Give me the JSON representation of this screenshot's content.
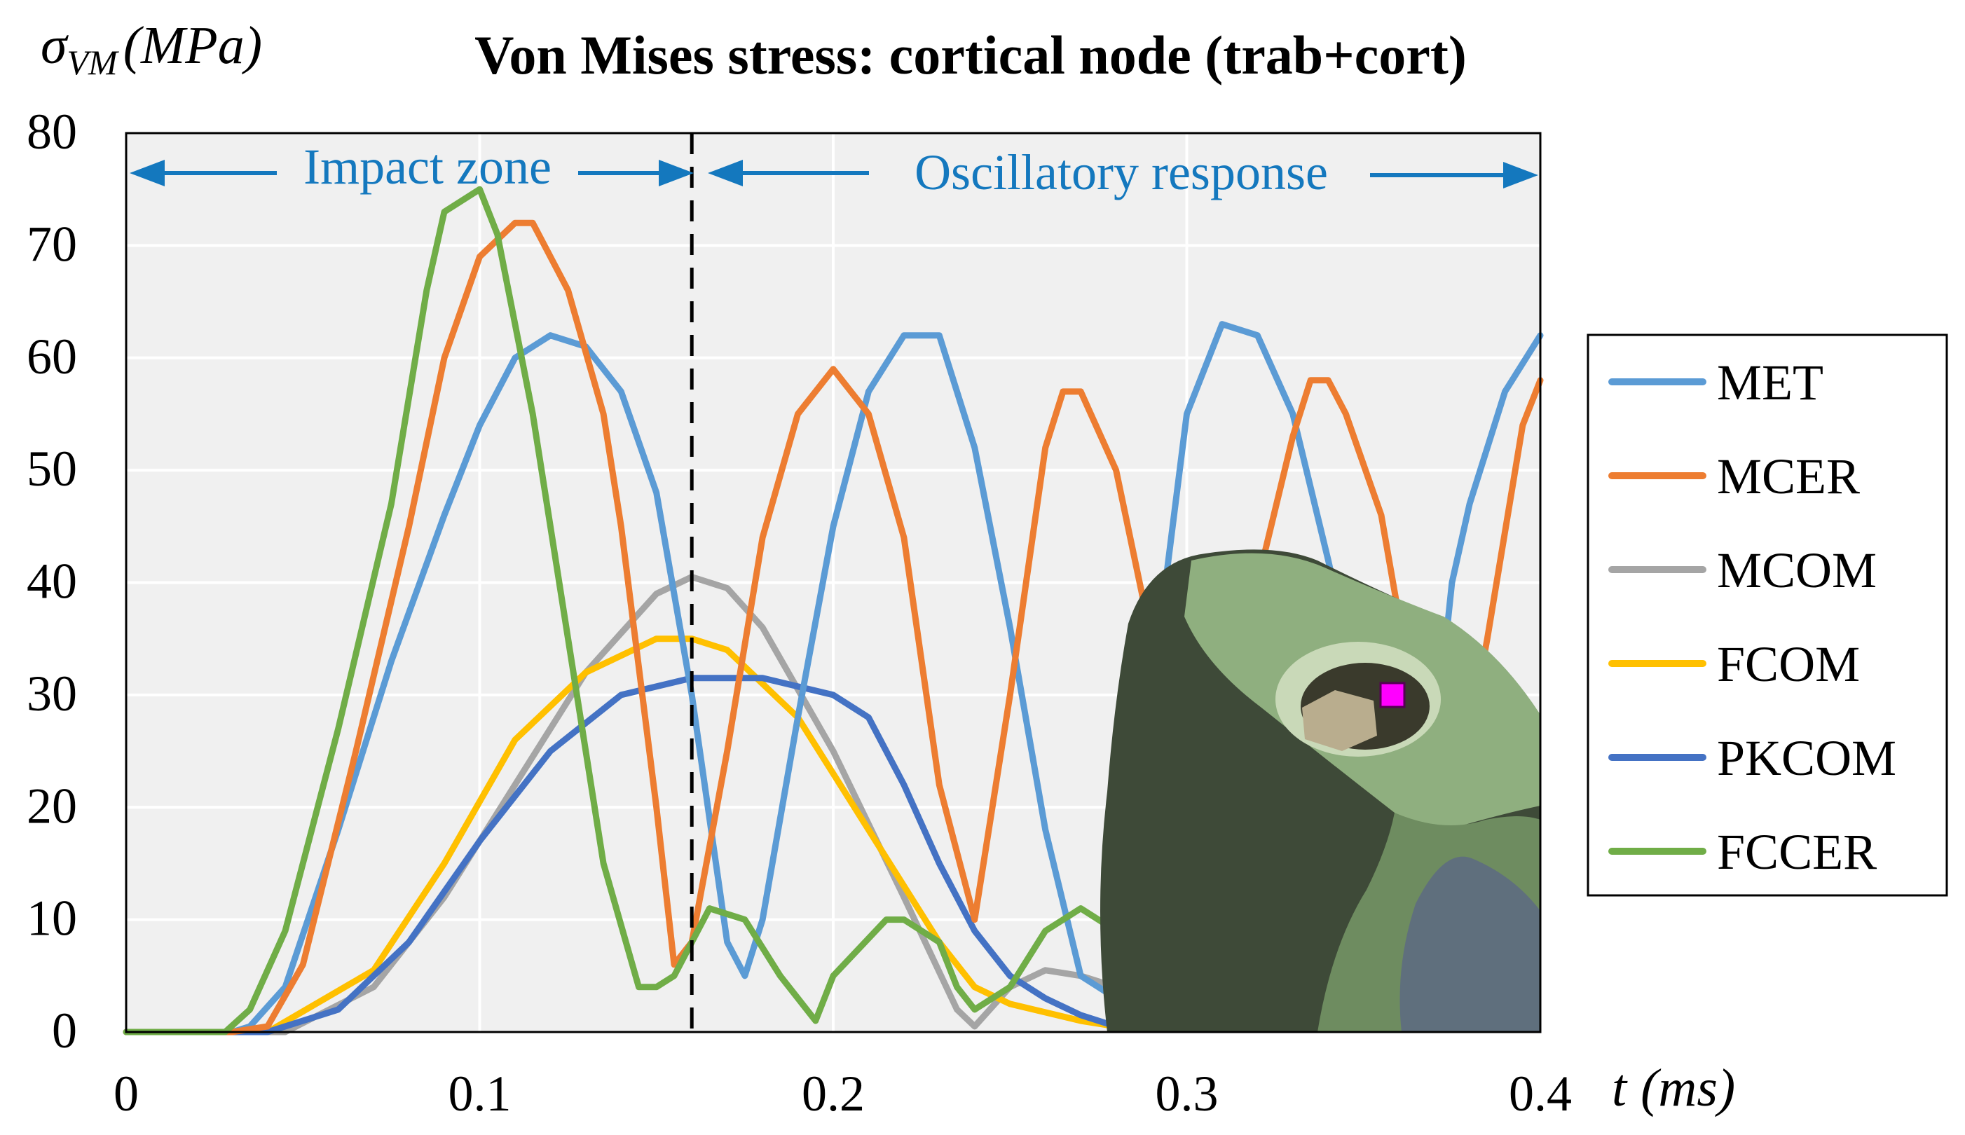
{
  "chart_data": {
    "type": "line",
    "title": "Von Mises stress: cortical node (trab+cort)",
    "ylabel": "σVM (MPa)",
    "ylabel_parts": {
      "symbol": "σ",
      "subscript": "VM",
      "unit": "(MPa)"
    },
    "xlabel": "t (ms)",
    "xlabel_parts": {
      "symbol": "t",
      "unit": "(ms)"
    },
    "xlim": [
      0,
      0.4
    ],
    "ylim": [
      0,
      80
    ],
    "x_ticks": [
      "0",
      "0.1",
      "0.2",
      "0.3",
      "0.4"
    ],
    "y_ticks": [
      "0",
      "10",
      "20",
      "30",
      "40",
      "50",
      "60",
      "70",
      "80"
    ],
    "x_tick_values": [
      0,
      0.1,
      0.2,
      0.3,
      0.4
    ],
    "y_tick_values": [
      0,
      10,
      20,
      30,
      40,
      50,
      60,
      70,
      80
    ],
    "grid": true,
    "legend_position": "right",
    "annotations": {
      "impact_zone": "Impact zone",
      "oscillatory_response": "Oscillatory response",
      "divider_x": 0.16
    },
    "colors": {
      "MET": "#5b9bd5",
      "MCER": "#ed7d31",
      "MCOM": "#a5a5a5",
      "FCOM": "#ffc000",
      "PKCOM": "#4472c4",
      "FCCER": "#70ad47",
      "annotation": "#1478be",
      "plot_bg": "#f0f0f0",
      "marker": "#ff00ff"
    },
    "inset": {
      "description_icon": "bone-mesh-inset"
    },
    "series": [
      {
        "name": "MET",
        "x": [
          0,
          0.03,
          0.035,
          0.045,
          0.06,
          0.075,
          0.09,
          0.1,
          0.11,
          0.12,
          0.13,
          0.14,
          0.15,
          0.16,
          0.17,
          0.175,
          0.18,
          0.19,
          0.2,
          0.21,
          0.22,
          0.23,
          0.24,
          0.25,
          0.26,
          0.27,
          0.28,
          0.285,
          0.29,
          0.3,
          0.31,
          0.32,
          0.33,
          0.34,
          0.35,
          0.36,
          0.37,
          0.375,
          0.38,
          0.39,
          0.4
        ],
        "values": [
          0,
          0,
          0.5,
          4,
          18,
          33,
          46,
          54,
          60,
          62,
          61,
          57,
          48,
          30,
          8,
          5,
          10,
          28,
          45,
          57,
          62,
          62,
          52,
          36,
          18,
          5,
          3,
          8,
          30,
          55,
          63,
          62,
          55,
          42,
          28,
          15,
          25,
          40,
          47,
          57,
          62
        ]
      },
      {
        "name": "MCER",
        "x": [
          0,
          0.03,
          0.04,
          0.05,
          0.065,
          0.08,
          0.09,
          0.1,
          0.11,
          0.115,
          0.125,
          0.135,
          0.14,
          0.15,
          0.155,
          0.16,
          0.17,
          0.18,
          0.19,
          0.2,
          0.21,
          0.22,
          0.23,
          0.24,
          0.25,
          0.26,
          0.265,
          0.27,
          0.28,
          0.29,
          0.3,
          0.31,
          0.32,
          0.33,
          0.335,
          0.34,
          0.345,
          0.355,
          0.365,
          0.375,
          0.385,
          0.395,
          0.4
        ],
        "values": [
          0,
          0,
          0.5,
          6,
          25,
          45,
          60,
          69,
          72,
          72,
          66,
          55,
          45,
          20,
          6,
          8,
          25,
          44,
          55,
          59,
          55,
          44,
          22,
          10,
          30,
          52,
          57,
          57,
          50,
          35,
          25,
          30,
          40,
          53,
          58,
          58,
          55,
          46,
          28,
          18,
          35,
          54,
          58
        ]
      },
      {
        "name": "MCOM",
        "x": [
          0,
          0.03,
          0.045,
          0.07,
          0.09,
          0.11,
          0.13,
          0.15,
          0.16,
          0.17,
          0.18,
          0.2,
          0.22,
          0.235,
          0.24,
          0.25,
          0.26,
          0.27,
          0.28
        ],
        "values": [
          0,
          0,
          0,
          4,
          12,
          22,
          32,
          39,
          40.5,
          39.5,
          36,
          25,
          12,
          2,
          0.5,
          4,
          5.5,
          5,
          4
        ]
      },
      {
        "name": "FCOM",
        "x": [
          0,
          0.04,
          0.07,
          0.09,
          0.11,
          0.13,
          0.15,
          0.16,
          0.17,
          0.19,
          0.21,
          0.23,
          0.24,
          0.25,
          0.27,
          0.28
        ],
        "values": [
          0,
          0,
          5.5,
          15,
          26,
          32,
          35,
          35,
          34,
          28,
          18,
          8,
          4,
          2.5,
          1,
          0.5
        ]
      },
      {
        "name": "PKCOM",
        "x": [
          0,
          0.04,
          0.06,
          0.08,
          0.1,
          0.12,
          0.14,
          0.16,
          0.18,
          0.2,
          0.21,
          0.22,
          0.23,
          0.24,
          0.25,
          0.26,
          0.27,
          0.28
        ],
        "values": [
          0,
          0,
          2,
          8,
          17,
          25,
          30,
          31.5,
          31.5,
          30,
          28,
          22,
          15,
          9,
          5,
          3,
          1.5,
          0.5
        ]
      },
      {
        "name": "FCCER",
        "x": [
          0,
          0.028,
          0.035,
          0.045,
          0.06,
          0.075,
          0.085,
          0.09,
          0.1,
          0.105,
          0.115,
          0.125,
          0.135,
          0.145,
          0.15,
          0.155,
          0.165,
          0.175,
          0.185,
          0.195,
          0.2,
          0.215,
          0.22,
          0.23,
          0.235,
          0.24,
          0.25,
          0.26,
          0.27,
          0.28
        ],
        "values": [
          0,
          0,
          2,
          9,
          27,
          47,
          66,
          73,
          75,
          71,
          55,
          35,
          15,
          4,
          4,
          5,
          11,
          10,
          5,
          1,
          5,
          10,
          10,
          8,
          4,
          2,
          4,
          9,
          11,
          9
        ]
      }
    ]
  }
}
